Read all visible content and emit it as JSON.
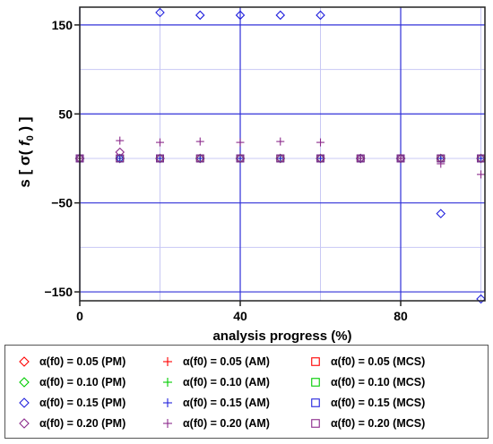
{
  "chart_data": {
    "type": "scatter",
    "xlabel": "analysis progress (%)",
    "ylabel": "s [σ(f0)]",
    "xlim": [
      0,
      101
    ],
    "ylim": [
      -160,
      170
    ],
    "xticks": [
      0,
      40,
      80
    ],
    "yticks": [
      150,
      50,
      -50,
      -150
    ],
    "xtick_labels": [
      "0",
      "40",
      "80"
    ],
    "ytick_labels": [
      "150",
      "50",
      "−50",
      "−150"
    ],
    "x_minor": [
      20,
      60,
      100
    ],
    "y_minor": [
      100,
      0,
      -100
    ],
    "grid": true,
    "legend_position": "bottom",
    "series": [
      {
        "name": "α(f0) = 0.05 (PM)",
        "marker": "diamond",
        "color": "#ff0000",
        "x": [
          0,
          10,
          20,
          30,
          40,
          50,
          60,
          70,
          80,
          90,
          100
        ],
        "y": [
          0,
          0,
          0,
          0,
          0,
          0,
          0,
          0,
          0,
          0,
          0
        ]
      },
      {
        "name": "α(f0) = 0.10 (PM)",
        "marker": "diamond",
        "color": "#00cc00",
        "x": [
          0,
          10,
          20,
          30,
          40,
          50,
          60,
          70,
          80,
          90,
          100
        ],
        "y": [
          0,
          0,
          0,
          0,
          0,
          0,
          0,
          0,
          0,
          0,
          0
        ]
      },
      {
        "name": "α(f0) = 0.15 (PM)",
        "marker": "diamond",
        "color": "#2222dd",
        "x": [
          0,
          10,
          20,
          30,
          40,
          50,
          60,
          70,
          80,
          90,
          100
        ],
        "y": [
          0,
          0,
          164,
          161,
          161,
          161,
          161,
          0,
          0,
          -62,
          -162
        ]
      },
      {
        "name": "α(f0) = 0.20 (PM)",
        "marker": "diamond",
        "color": "#8b2a8b",
        "x": [
          0,
          10,
          20,
          30,
          40,
          50,
          60,
          70,
          80,
          90,
          100
        ],
        "y": [
          0,
          7,
          0,
          0,
          0,
          0,
          0,
          0,
          0,
          0,
          0
        ]
      },
      {
        "name": "α(f0) = 0.05 (AM)",
        "marker": "plus",
        "color": "#ff0000",
        "x": [
          0,
          10,
          20,
          30,
          40,
          50,
          60,
          70,
          80,
          90,
          100
        ],
        "y": [
          0,
          0,
          0,
          0,
          0,
          0,
          0,
          0,
          0,
          0,
          0
        ]
      },
      {
        "name": "α(f0) = 0.10 (AM)",
        "marker": "plus",
        "color": "#00cc00",
        "x": [
          0,
          10,
          20,
          30,
          40,
          50,
          60,
          70,
          80,
          90,
          100
        ],
        "y": [
          0,
          0,
          0,
          0,
          0,
          0,
          0,
          0,
          0,
          0,
          0
        ]
      },
      {
        "name": "α(f0) = 0.15 (AM)",
        "marker": "plus",
        "color": "#2222dd",
        "x": [
          0,
          10,
          20,
          30,
          40,
          50,
          60,
          70,
          80,
          90,
          100
        ],
        "y": [
          0,
          0,
          0,
          0,
          0,
          0,
          0,
          0,
          0,
          0,
          0
        ]
      },
      {
        "name": "α(f0) = 0.20 (AM)",
        "marker": "plus",
        "color": "#8b2a8b",
        "x": [
          0,
          10,
          20,
          30,
          40,
          50,
          60,
          70,
          80,
          90,
          100
        ],
        "y": [
          0,
          20,
          18,
          19,
          18,
          19,
          18,
          0,
          0,
          -6,
          -18
        ]
      },
      {
        "name": "α(f0) = 0.05 (MCS)",
        "marker": "square",
        "color": "#ff0000",
        "x": [
          0,
          10,
          20,
          30,
          40,
          50,
          60,
          70,
          80,
          90,
          100
        ],
        "y": [
          0,
          0,
          0,
          0,
          0,
          0,
          0,
          0,
          0,
          0,
          0
        ]
      },
      {
        "name": "α(f0) = 0.10 (MCS)",
        "marker": "square",
        "color": "#00cc00",
        "x": [
          0,
          10,
          20,
          30,
          40,
          50,
          60,
          70,
          80,
          90,
          100
        ],
        "y": [
          0,
          0,
          0,
          0,
          0,
          0,
          0,
          0,
          0,
          0,
          0
        ]
      },
      {
        "name": "α(f0) = 0.15 (MCS)",
        "marker": "square",
        "color": "#2222dd",
        "x": [
          0,
          10,
          20,
          30,
          40,
          50,
          60,
          70,
          80,
          90,
          100
        ],
        "y": [
          0,
          0,
          0,
          0,
          0,
          0,
          0,
          0,
          0,
          0,
          0
        ]
      },
      {
        "name": "α(f0) = 0.20 (MCS)",
        "marker": "square",
        "color": "#8b2a8b",
        "x": [
          0,
          10,
          20,
          30,
          40,
          50,
          60,
          70,
          80,
          90,
          100
        ],
        "y": [
          0,
          0,
          0,
          0,
          0,
          0,
          0,
          0,
          0,
          0,
          0
        ]
      }
    ]
  }
}
